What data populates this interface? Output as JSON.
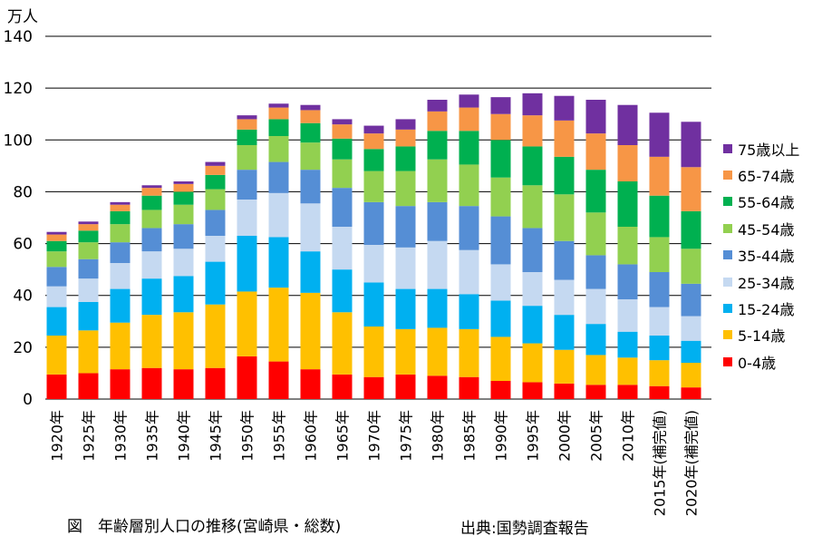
{
  "unit_label": "万人",
  "caption": "図　年齢層別人口の推移(宮崎県・総数)",
  "source": "出典:国勢調査報告",
  "chart_data": {
    "type": "bar",
    "stacked": true,
    "ylim": [
      0,
      140
    ],
    "yticks": [
      0,
      20,
      40,
      60,
      80,
      100,
      120,
      140
    ],
    "grid": true,
    "legend_position": "right",
    "categories": [
      "1920年",
      "1925年",
      "1930年",
      "1935年",
      "1940年",
      "1945年",
      "1950年",
      "1955年",
      "1960年",
      "1965年",
      "1970年",
      "1975年",
      "1980年",
      "1985年",
      "1990年",
      "1995年",
      "2000年",
      "2005年",
      "2010年",
      "2015年(補完値)",
      "2020年(補完値)"
    ],
    "series": [
      {
        "name": "0-4歳",
        "color": "#ff0000",
        "values": [
          9.5,
          10,
          11.5,
          12,
          11.5,
          12,
          16.5,
          14.5,
          11.5,
          9.5,
          8.5,
          9.5,
          9,
          8.5,
          7,
          6.5,
          6,
          5.5,
          5.5,
          5,
          4.5
        ]
      },
      {
        "name": "5-14歳",
        "color": "#ffc000",
        "values": [
          15,
          16.5,
          18,
          20.5,
          22,
          24.5,
          25,
          28.5,
          29.5,
          24,
          19.5,
          17.5,
          18.5,
          18.5,
          17,
          15,
          13,
          11.5,
          10.5,
          10,
          9.5
        ]
      },
      {
        "name": "15-24歳",
        "color": "#00b0f0",
        "values": [
          11,
          11,
          13,
          14,
          14,
          16.5,
          21.5,
          19.5,
          16,
          16.5,
          17,
          15.5,
          15,
          13.5,
          14,
          14.5,
          13.5,
          12,
          10,
          9.5,
          8.5
        ]
      },
      {
        "name": "25-34歳",
        "color": "#c5d9f1",
        "values": [
          8,
          9,
          10,
          10.5,
          10.5,
          10,
          14,
          17,
          18.5,
          16.5,
          14.5,
          16,
          18.5,
          17,
          14,
          13,
          13.5,
          13.5,
          12.5,
          11,
          9.5
        ]
      },
      {
        "name": "35-44歳",
        "color": "#558ed5",
        "values": [
          7.5,
          7.5,
          8,
          9,
          9.5,
          10,
          11.5,
          12,
          13,
          15,
          16.5,
          16,
          15,
          17,
          18.5,
          17,
          15,
          13,
          13.5,
          13.5,
          12.5
        ]
      },
      {
        "name": "45-54歳",
        "color": "#92d050",
        "values": [
          6,
          6.5,
          7,
          7,
          7.5,
          8,
          9.5,
          10,
          10.5,
          11,
          12,
          13.5,
          16.5,
          16,
          15,
          16.5,
          18,
          16.5,
          14.5,
          13.5,
          13.5
        ]
      },
      {
        "name": "55-64歳",
        "color": "#00b050",
        "values": [
          4,
          4.5,
          5,
          5.5,
          5,
          5.5,
          6,
          6.5,
          7.5,
          8,
          8.5,
          9.5,
          11,
          13,
          14.5,
          15,
          14.5,
          16.5,
          17.5,
          16,
          14.5
        ]
      },
      {
        "name": "65-74歳",
        "color": "#f79646",
        "values": [
          2.5,
          2.5,
          2.5,
          3,
          3,
          3.5,
          4,
          4.5,
          5,
          5.5,
          6,
          6.5,
          7.5,
          9,
          10,
          12,
          14,
          14,
          14,
          15,
          17
        ]
      },
      {
        "name": "75歳以上",
        "color": "#7030a0",
        "values": [
          1,
          1,
          1,
          1,
          1,
          1.5,
          1.5,
          1.5,
          2,
          2,
          3,
          4,
          4.5,
          5,
          6.5,
          8.5,
          9.5,
          13,
          15.5,
          17,
          17.5
        ]
      }
    ]
  }
}
